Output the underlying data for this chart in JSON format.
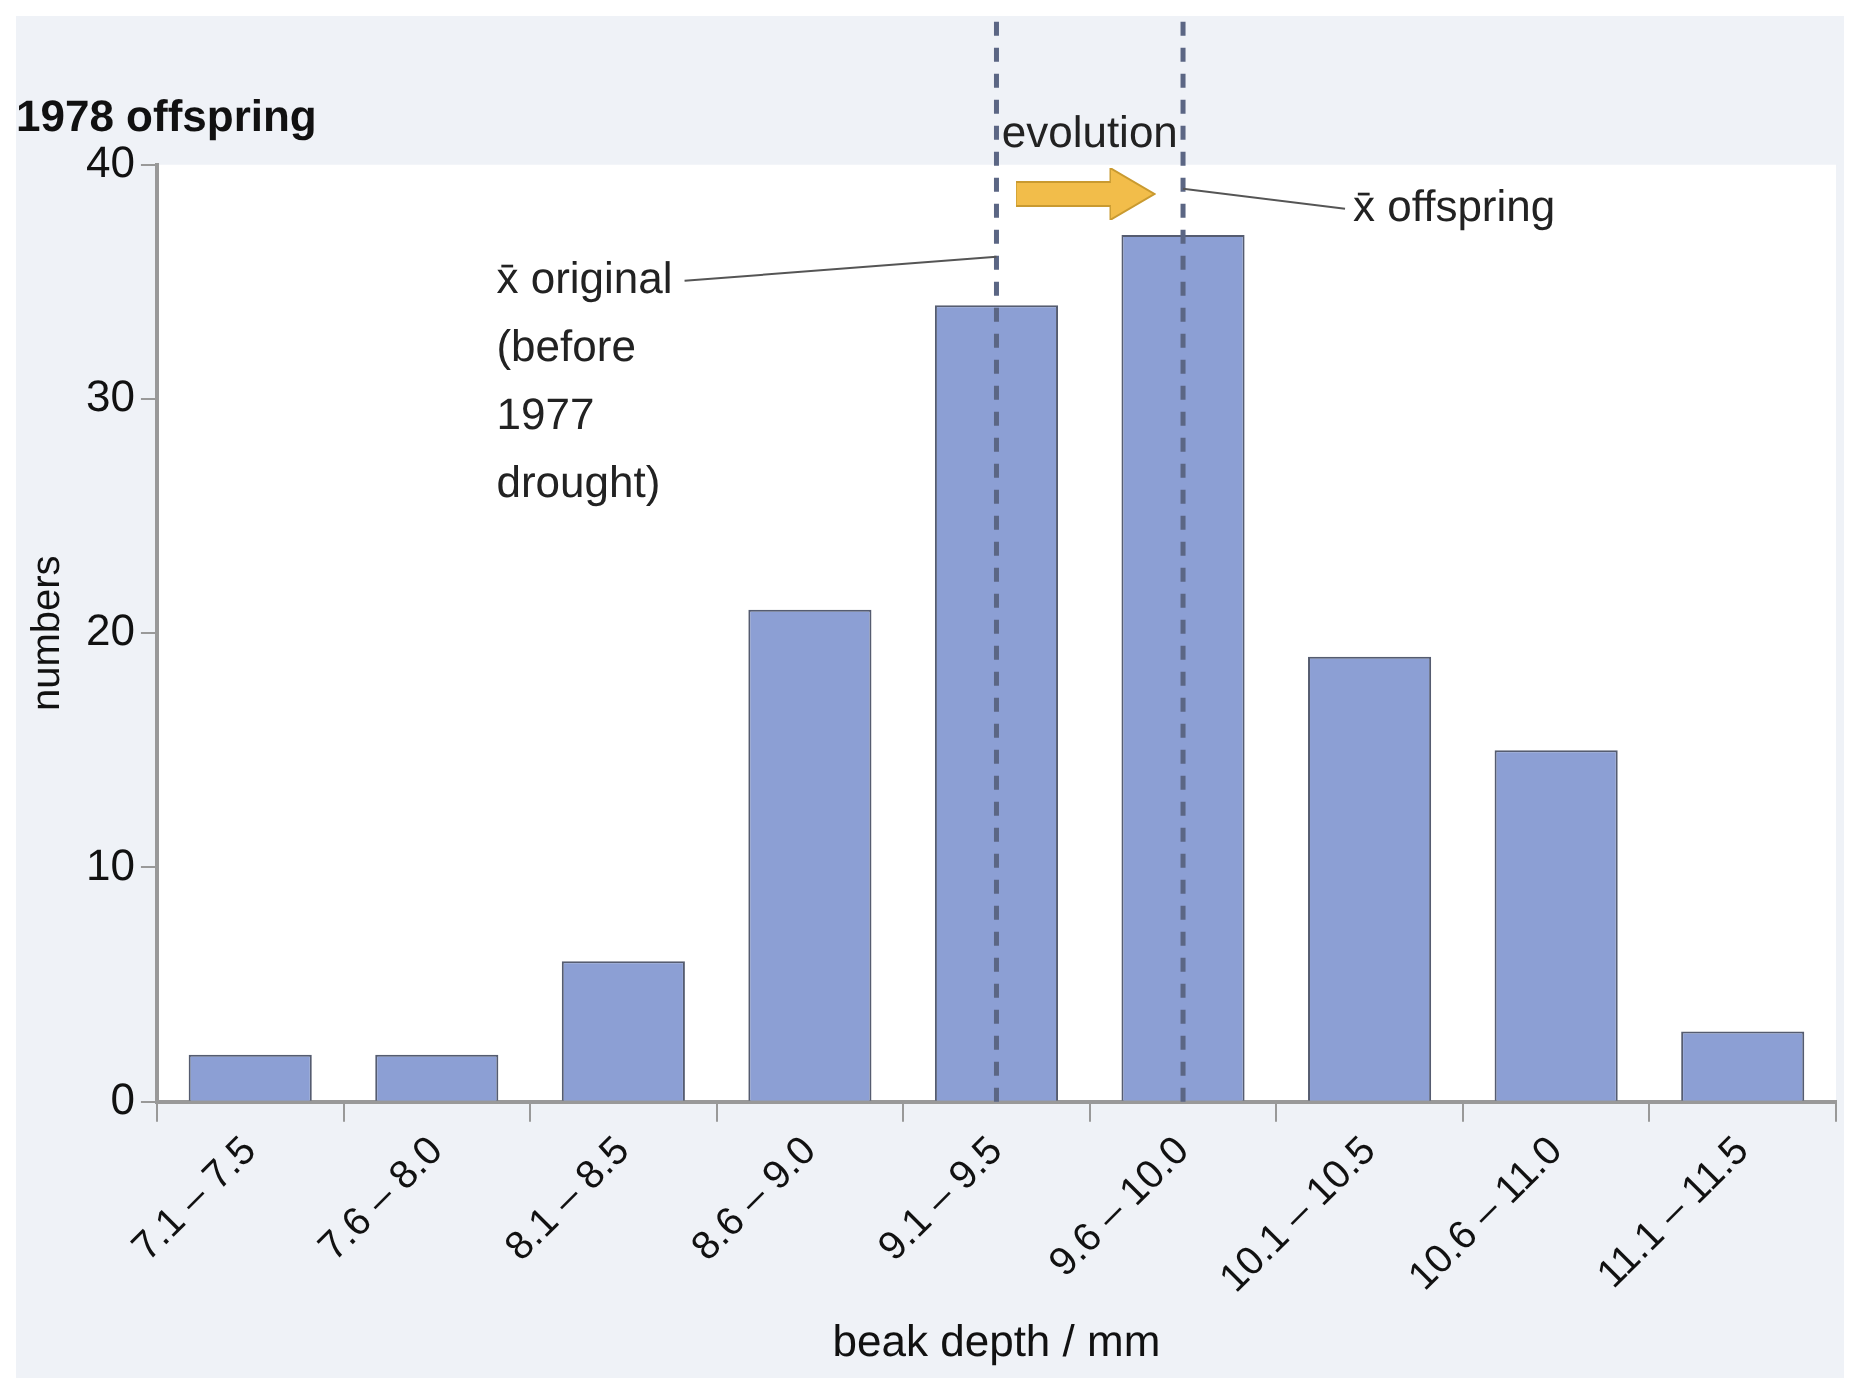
{
  "chart_data": {
    "type": "bar",
    "title": "1978 offspring",
    "xlabel": "beak depth / mm",
    "ylabel": "numbers",
    "categories": [
      "7.1 – 7.5",
      "7.6 – 8.0",
      "8.1 – 8.5",
      "8.6 – 9.0",
      "9.1 – 9.5",
      "9.6 – 10.0",
      "10.1 – 10.5",
      "10.6 – 11.0",
      "11.1 – 11.5"
    ],
    "values": [
      2,
      2,
      6,
      21,
      34,
      37,
      19,
      15,
      3
    ],
    "color": "#8c9fd4",
    "ylim": [
      0,
      40
    ],
    "yticks": [
      0,
      10,
      20,
      30,
      40
    ],
    "grid": false,
    "legend": false,
    "ref_lines": [
      {
        "axis": "x",
        "value": "9.1 – 9.5",
        "label": "x̄ original\n(before\n1977\ndrought)",
        "color": "#5b6684",
        "line_style": "dashed"
      },
      {
        "axis": "x",
        "value": "9.6 – 10.0",
        "label": "x̄ offspring",
        "color": "#5b6684",
        "line_style": "dashed"
      }
    ],
    "annotations": [
      "evolution"
    ]
  }
}
